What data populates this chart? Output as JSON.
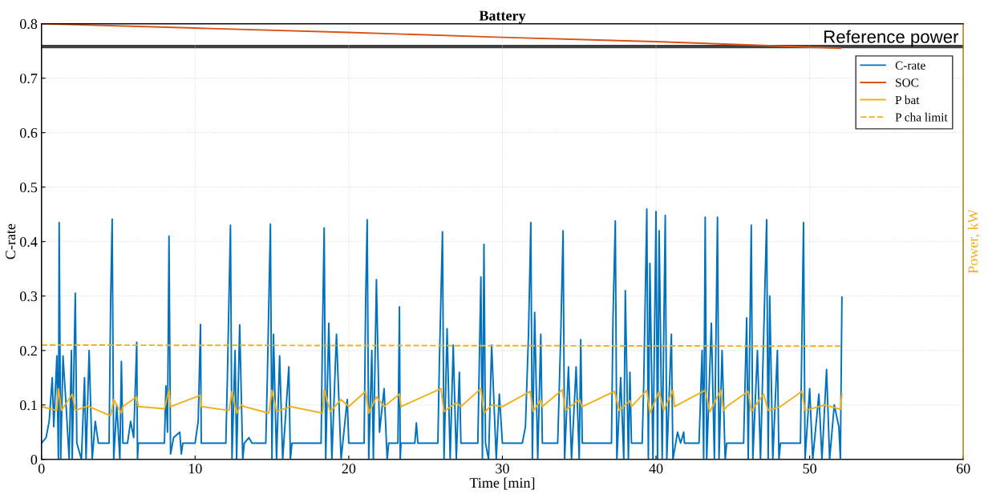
{
  "chart_data": {
    "type": "line",
    "title": "Battery",
    "xlabel": "Time [min]",
    "ylabel": "C-rate",
    "y2label": "Power, kW",
    "xlim": [
      0,
      60
    ],
    "xticks": [
      0,
      10,
      20,
      30,
      40,
      50,
      60
    ],
    "ylim": [
      0,
      0.8
    ],
    "yticks": [
      0,
      0.1,
      0.2,
      0.3,
      0.4,
      0.5,
      0.6,
      0.7,
      0.8
    ],
    "grid": true,
    "legend": "top right",
    "marker": "none",
    "ref_lines": [
      {
        "axis": "y",
        "value": 0.758,
        "label": "Reference power",
        "color": "#404040"
      }
    ],
    "series": [
      {
        "name": "C-rate",
        "color": "#0072bd",
        "x": [
          0,
          0.3,
          0.5,
          0.7,
          0.8,
          1.0,
          1.1,
          1.15,
          1.25,
          1.4,
          1.6,
          1.8,
          1.95,
          2.0,
          2.2,
          2.3,
          2.6,
          2.8,
          2.9,
          3.1,
          3.3,
          3.5,
          3.7,
          4.4,
          4.5,
          4.6,
          4.7,
          4.9,
          5.1,
          5.2,
          5.3,
          5.6,
          5.8,
          6.0,
          6.2,
          6.25,
          6.3,
          8.0,
          8.1,
          8.2,
          8.3,
          8.4,
          8.6,
          9.0,
          9.1,
          9.2,
          10.0,
          10.2,
          10.35,
          10.4,
          12.0,
          12.1,
          12.3,
          12.4,
          12.6,
          12.7,
          12.9,
          13.1,
          13.2,
          13.5,
          13.7,
          14.6,
          14.7,
          14.9,
          15.0,
          15.1,
          15.3,
          15.5,
          15.7,
          16.1,
          16.2,
          16.3,
          18.2,
          18.3,
          18.4,
          18.5,
          18.7,
          18.9,
          19.2,
          19.5,
          19.9,
          20.0,
          21.0,
          21.1,
          21.2,
          21.3,
          21.5,
          21.6,
          21.8,
          22.0,
          22.3,
          22.5,
          22.6,
          23.2,
          23.3,
          23.35,
          23.4,
          24.3,
          24.4,
          24.5,
          25.8,
          25.9,
          26.1,
          26.2,
          26.4,
          26.6,
          26.8,
          27.0,
          27.2,
          27.3,
          28.4,
          28.6,
          28.7,
          28.8,
          28.9,
          29.1,
          29.3,
          29.6,
          29.8,
          30.0,
          31.3,
          31.5,
          31.7,
          31.85,
          31.95,
          32.1,
          32.3,
          32.5,
          32.6,
          33.6,
          33.8,
          33.95,
          34.05,
          34.3,
          34.5,
          34.8,
          35.0,
          35.1,
          35.2,
          37.1,
          37.2,
          37.35,
          37.45,
          37.7,
          37.9,
          38.0,
          38.2,
          38.3,
          38.4,
          39.1,
          39.2,
          39.4,
          39.5,
          39.6,
          39.8,
          40.0,
          40.1,
          40.2,
          40.4,
          40.6,
          40.7,
          41.0,
          41.1,
          41.4,
          41.6,
          41.8,
          41.85,
          42.8,
          43.0,
          43.1,
          43.2,
          43.3,
          43.6,
          43.8,
          44.0,
          44.1,
          44.3,
          44.5,
          44.6,
          45.7,
          45.9,
          46.0,
          46.2,
          46.3,
          46.6,
          46.8,
          47.2,
          47.3,
          47.4,
          47.6,
          47.9,
          48.0,
          48.1,
          49.4,
          49.6,
          49.7,
          50.0,
          50.2,
          50.6,
          50.8,
          51.1,
          51.3,
          51.6,
          51.9,
          52.0,
          52.1
        ],
        "values": [
          0.03,
          0.04,
          0.07,
          0.15,
          0.06,
          0.19,
          0.0,
          0.435,
          0.0,
          0.19,
          0.1,
          0.0,
          0.2,
          0.0,
          0.305,
          0.03,
          0.0,
          0.15,
          0.0,
          0.2,
          0.0,
          0.07,
          0.03,
          0.03,
          0.29,
          0.441,
          0.0,
          0.1,
          0.0,
          0.18,
          0.03,
          0.03,
          0.07,
          0.04,
          0.215,
          0.0,
          0.03,
          0.03,
          0.135,
          0.05,
          0.41,
          0.01,
          0.04,
          0.05,
          0.01,
          0.03,
          0.03,
          0.07,
          0.248,
          0.03,
          0.03,
          0.15,
          0.43,
          0.0,
          0.2,
          0.0,
          0.247,
          0.0,
          0.03,
          0.04,
          0.03,
          0.03,
          0.15,
          0.432,
          0.0,
          0.23,
          0.0,
          0.19,
          0.0,
          0.17,
          0.0,
          0.03,
          0.03,
          0.25,
          0.425,
          0.0,
          0.25,
          0.0,
          0.23,
          0.0,
          0.11,
          0.03,
          0.03,
          0.29,
          0.44,
          0.0,
          0.2,
          0.0,
          0.33,
          0.05,
          0.13,
          0.0,
          0.03,
          0.03,
          0.28,
          0.0,
          0.03,
          0.03,
          0.067,
          0.03,
          0.03,
          0.18,
          0.418,
          0.0,
          0.24,
          0.0,
          0.21,
          0.0,
          0.16,
          0.03,
          0.03,
          0.335,
          0.0,
          0.395,
          0.03,
          0.0,
          0.21,
          0.0,
          0.12,
          0.03,
          0.03,
          0.06,
          0.23,
          0.435,
          0.0,
          0.27,
          0.0,
          0.23,
          0.03,
          0.03,
          0.23,
          0.42,
          0.0,
          0.17,
          0.0,
          0.17,
          0.0,
          0.22,
          0.03,
          0.03,
          0.26,
          0.438,
          0.0,
          0.15,
          0.0,
          0.31,
          0.0,
          0.16,
          0.03,
          0.03,
          0.14,
          0.46,
          0.0,
          0.36,
          0.0,
          0.455,
          0.0,
          0.42,
          0.0,
          0.448,
          0.0,
          0.23,
          0.0,
          0.05,
          0.03,
          0.05,
          0.03,
          0.03,
          0.2,
          0.0,
          0.445,
          0.0,
          0.25,
          0.0,
          0.445,
          0.0,
          0.2,
          0.0,
          0.03,
          0.03,
          0.26,
          0.0,
          0.43,
          0.0,
          0.2,
          0.0,
          0.44,
          0.0,
          0.3,
          0.0,
          0.2,
          0.0,
          0.03,
          0.03,
          0.435,
          0.0,
          0.13,
          0.0,
          0.12,
          0.0,
          0.165,
          0.0,
          0.1,
          0.06,
          0.0,
          0.298
        ]
      },
      {
        "name": "SOC",
        "color": "#d95319",
        "x": [
          0,
          10,
          20,
          30,
          40,
          47,
          52
        ],
        "values": [
          0.8,
          0.792,
          0.784,
          0.775,
          0.767,
          0.76,
          0.755
        ]
      },
      {
        "name": "P bat",
        "color": "#edb120",
        "x": [
          0,
          1,
          1.1,
          1.3,
          2,
          2.2,
          3,
          4.5,
          4.7,
          5.2,
          5.3,
          6.2,
          6.3,
          8,
          8.3,
          8.4,
          10.35,
          10.4,
          12.2,
          12.4,
          12.7,
          13,
          13.2,
          14.8,
          15,
          15.3,
          16.2,
          18.3,
          18.4,
          18.8,
          19.5,
          20,
          21.1,
          21.3,
          21.8,
          22.3,
          23.3,
          23.4,
          26,
          26.2,
          27,
          27.3,
          28.6,
          28.8,
          29.3,
          30,
          31.8,
          32,
          32.5,
          32.6,
          33.9,
          34.1,
          35,
          35.2,
          37.3,
          37.6,
          38.3,
          38.4,
          39.4,
          39.6,
          40.2,
          40.5,
          41.1,
          41.2,
          43.2,
          43.5,
          44.2,
          44.4,
          44.6,
          46,
          46.2,
          47,
          47.3,
          48.1,
          49.5,
          49.7,
          51,
          52,
          52.1
        ],
        "values": [
          0.097,
          0.09,
          0.13,
          0.09,
          0.12,
          0.09,
          0.098,
          0.08,
          0.11,
          0.085,
          0.097,
          0.115,
          0.097,
          0.093,
          0.128,
          0.097,
          0.118,
          0.097,
          0.09,
          0.125,
          0.085,
          0.1,
          0.097,
          0.085,
          0.127,
          0.088,
          0.097,
          0.085,
          0.128,
          0.088,
          0.11,
          0.097,
          0.125,
          0.085,
          0.115,
          0.097,
          0.12,
          0.097,
          0.13,
          0.088,
          0.104,
          0.097,
          0.13,
          0.085,
          0.1,
          0.097,
          0.125,
          0.088,
          0.11,
          0.097,
          0.128,
          0.09,
          0.11,
          0.097,
          0.125,
          0.09,
          0.108,
          0.097,
          0.127,
          0.085,
          0.125,
          0.09,
          0.127,
          0.097,
          0.127,
          0.087,
          0.127,
          0.09,
          0.097,
          0.125,
          0.088,
          0.12,
          0.09,
          0.097,
          0.125,
          0.09,
          0.1,
          0.092,
          0.12
        ]
      },
      {
        "name": "P cha limit",
        "color": "#edb120",
        "line_style": "dashed",
        "x": [
          0,
          52
        ],
        "values": [
          0.21,
          0.208
        ]
      }
    ]
  }
}
